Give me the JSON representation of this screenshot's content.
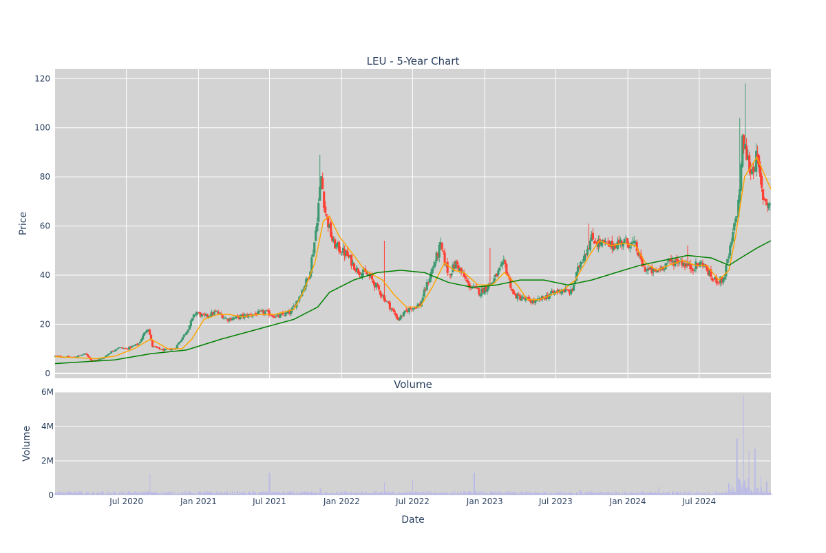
{
  "chart_data": [
    {
      "type": "candlestick",
      "title": "LEU - 5-Year Chart",
      "ylabel": "Price",
      "ylim": [
        -2,
        124
      ],
      "yticks": [
        0,
        20,
        40,
        60,
        80,
        100,
        120
      ],
      "xrange": [
        "2020-01-01",
        "2024-12-31"
      ],
      "xticks": [
        {
          "date": "2020-07-01",
          "label": "Jul 2020"
        },
        {
          "date": "2021-01-01",
          "label": "Jan 2021"
        },
        {
          "date": "2021-07-01",
          "label": "Jul 2021"
        },
        {
          "date": "2022-01-01",
          "label": "Jan 2022"
        },
        {
          "date": "2022-07-01",
          "label": "Jul 2022"
        },
        {
          "date": "2023-01-01",
          "label": "Jan 2023"
        },
        {
          "date": "2023-07-01",
          "label": "Jul 2023"
        },
        {
          "date": "2024-01-01",
          "label": "Jan 2024"
        },
        {
          "date": "2024-07-01",
          "label": "Jul 2024"
        }
      ],
      "grid": true,
      "colors": {
        "up": "#3d9970",
        "down": "#ff4136",
        "ma_short": "#ffa500",
        "ma_long": "#008000",
        "plot_bg": "#d3d3d3"
      },
      "close_path": [
        [
          "2020-01-01",
          7
        ],
        [
          "2020-02-15",
          6.5
        ],
        [
          "2020-03-20",
          8
        ],
        [
          "2020-04-05",
          5
        ],
        [
          "2020-05-01",
          6
        ],
        [
          "2020-05-20",
          8.5
        ],
        [
          "2020-06-10",
          10.5
        ],
        [
          "2020-07-01",
          10
        ],
        [
          "2020-08-01",
          12
        ],
        [
          "2020-08-25",
          19
        ],
        [
          "2020-09-05",
          11
        ],
        [
          "2020-10-01",
          9.5
        ],
        [
          "2020-11-01",
          10
        ],
        [
          "2020-12-01",
          17
        ],
        [
          "2020-12-25",
          25
        ],
        [
          "2021-01-15",
          23
        ],
        [
          "2021-02-15",
          25
        ],
        [
          "2021-03-15",
          22
        ],
        [
          "2021-04-15",
          23
        ],
        [
          "2021-05-20",
          24
        ],
        [
          "2021-06-20",
          25
        ],
        [
          "2021-07-20",
          23
        ],
        [
          "2021-08-25",
          25
        ],
        [
          "2021-09-20",
          33
        ],
        [
          "2021-10-10",
          40
        ],
        [
          "2021-10-25",
          55
        ],
        [
          "2021-11-10",
          80
        ],
        [
          "2021-11-20",
          66
        ],
        [
          "2021-12-10",
          53
        ],
        [
          "2022-01-15",
          48
        ],
        [
          "2022-02-10",
          42
        ],
        [
          "2022-03-10",
          40
        ],
        [
          "2022-04-01",
          35
        ],
        [
          "2022-05-01",
          28
        ],
        [
          "2022-05-25",
          22
        ],
        [
          "2022-06-20",
          26
        ],
        [
          "2022-07-20",
          28
        ],
        [
          "2022-08-15",
          40
        ],
        [
          "2022-09-10",
          52
        ],
        [
          "2022-10-01",
          40
        ],
        [
          "2022-10-20",
          45
        ],
        [
          "2022-11-20",
          36
        ],
        [
          "2022-12-20",
          33
        ],
        [
          "2023-01-20",
          37
        ],
        [
          "2023-02-20",
          45
        ],
        [
          "2023-03-15",
          32
        ],
        [
          "2023-04-15",
          30
        ],
        [
          "2023-05-10",
          29
        ],
        [
          "2023-06-15",
          32
        ],
        [
          "2023-07-15",
          34
        ],
        [
          "2023-08-10",
          33
        ],
        [
          "2023-09-01",
          45
        ],
        [
          "2023-10-01",
          55
        ],
        [
          "2023-10-20",
          53
        ],
        [
          "2023-11-20",
          52
        ],
        [
          "2023-12-20",
          54
        ],
        [
          "2024-01-20",
          52
        ],
        [
          "2024-02-10",
          43
        ],
        [
          "2024-03-10",
          41
        ],
        [
          "2024-04-10",
          45
        ],
        [
          "2024-05-10",
          46
        ],
        [
          "2024-06-10",
          43
        ],
        [
          "2024-07-10",
          45
        ],
        [
          "2024-08-05",
          38
        ],
        [
          "2024-09-01",
          38
        ],
        [
          "2024-09-20",
          52
        ],
        [
          "2024-10-10",
          70
        ],
        [
          "2024-10-20",
          95
        ],
        [
          "2024-11-10",
          82
        ],
        [
          "2024-11-25",
          88
        ],
        [
          "2024-12-10",
          72
        ],
        [
          "2024-12-31",
          68
        ]
      ],
      "spikes": [
        [
          "2021-11-08",
          89
        ],
        [
          "2024-10-25",
          118
        ],
        [
          "2024-10-12",
          104
        ],
        [
          "2022-04-20",
          54
        ],
        [
          "2022-09-12",
          55
        ],
        [
          "2023-01-15",
          51
        ],
        [
          "2023-09-25",
          61
        ],
        [
          "2024-06-01",
          52
        ],
        [
          "2024-08-06",
          34
        ]
      ],
      "ma_short_path": [
        [
          "2020-01-01",
          6.8
        ],
        [
          "2020-04-15",
          6
        ],
        [
          "2020-06-01",
          7
        ],
        [
          "2020-07-20",
          10
        ],
        [
          "2020-09-01",
          14
        ],
        [
          "2020-10-15",
          10
        ],
        [
          "2020-11-20",
          10
        ],
        [
          "2020-12-15",
          14
        ],
        [
          "2021-01-15",
          22
        ],
        [
          "2021-02-20",
          24
        ],
        [
          "2021-03-20",
          24
        ],
        [
          "2021-04-20",
          23
        ],
        [
          "2021-06-01",
          24
        ],
        [
          "2021-07-15",
          24
        ],
        [
          "2021-09-01",
          26
        ],
        [
          "2021-09-25",
          33
        ],
        [
          "2021-10-25",
          45
        ],
        [
          "2021-11-15",
          62
        ],
        [
          "2021-12-01",
          64
        ],
        [
          "2021-12-25",
          56
        ],
        [
          "2022-02-01",
          48
        ],
        [
          "2022-03-01",
          42
        ],
        [
          "2022-04-15",
          38
        ],
        [
          "2022-05-15",
          32
        ],
        [
          "2022-06-15",
          27
        ],
        [
          "2022-07-20",
          27
        ],
        [
          "2022-08-20",
          35
        ],
        [
          "2022-09-20",
          45
        ],
        [
          "2022-10-15",
          42
        ],
        [
          "2022-11-10",
          41
        ],
        [
          "2022-12-15",
          36
        ],
        [
          "2023-01-20",
          36
        ],
        [
          "2023-02-20",
          41
        ],
        [
          "2023-03-25",
          36
        ],
        [
          "2023-04-20",
          30
        ],
        [
          "2023-05-20",
          30
        ],
        [
          "2023-06-20",
          32
        ],
        [
          "2023-07-20",
          34
        ],
        [
          "2023-08-20",
          38
        ],
        [
          "2023-09-25",
          48
        ],
        [
          "2023-10-20",
          54
        ],
        [
          "2023-11-20",
          52
        ],
        [
          "2023-12-20",
          53
        ],
        [
          "2024-01-20",
          52
        ],
        [
          "2024-02-15",
          45
        ],
        [
          "2024-03-15",
          42
        ],
        [
          "2024-04-15",
          44
        ],
        [
          "2024-05-20",
          46
        ],
        [
          "2024-06-20",
          44
        ],
        [
          "2024-07-20",
          44
        ],
        [
          "2024-08-20",
          38
        ],
        [
          "2024-09-15",
          42
        ],
        [
          "2024-10-01",
          55
        ],
        [
          "2024-10-25",
          80
        ],
        [
          "2024-11-25",
          88
        ],
        [
          "2024-12-31",
          75
        ]
      ],
      "ma_long_path": [
        [
          "2020-01-01",
          4
        ],
        [
          "2020-06-01",
          5.5
        ],
        [
          "2020-09-01",
          8
        ],
        [
          "2020-12-01",
          9.5
        ],
        [
          "2021-03-01",
          14
        ],
        [
          "2021-06-01",
          18
        ],
        [
          "2021-09-01",
          22
        ],
        [
          "2021-11-01",
          27
        ],
        [
          "2021-12-01",
          33
        ],
        [
          "2022-02-01",
          38
        ],
        [
          "2022-04-01",
          41
        ],
        [
          "2022-06-01",
          42
        ],
        [
          "2022-08-01",
          41
        ],
        [
          "2022-10-01",
          37
        ],
        [
          "2022-12-01",
          35
        ],
        [
          "2023-02-01",
          36
        ],
        [
          "2023-04-01",
          38
        ],
        [
          "2023-06-01",
          38
        ],
        [
          "2023-08-01",
          36
        ],
        [
          "2023-10-01",
          38
        ],
        [
          "2023-12-01",
          41
        ],
        [
          "2024-02-01",
          44
        ],
        [
          "2024-04-01",
          46
        ],
        [
          "2024-06-01",
          48
        ],
        [
          "2024-08-01",
          47
        ],
        [
          "2024-09-15",
          44
        ],
        [
          "2024-10-15",
          47
        ],
        [
          "2024-11-25",
          51
        ],
        [
          "2024-12-31",
          54
        ]
      ]
    },
    {
      "type": "bar",
      "title": "Volume",
      "xlabel": "Date",
      "ylabel": "Volume",
      "ylim": [
        0,
        6000000
      ],
      "yticks": [
        {
          "value": 0,
          "label": "0"
        },
        {
          "value": 2000000,
          "label": "2M"
        },
        {
          "value": 4000000,
          "label": "4M"
        },
        {
          "value": 6000000,
          "label": "6M"
        }
      ],
      "bar_color": "#b8b8e8",
      "baseline": 150000,
      "spikes": [
        [
          "2020-08-30",
          1250000
        ],
        [
          "2021-07-01",
          1300000
        ],
        [
          "2021-11-08",
          400000
        ],
        [
          "2022-04-20",
          750000
        ],
        [
          "2022-07-01",
          900000
        ],
        [
          "2022-12-05",
          1300000
        ],
        [
          "2023-09-01",
          300000
        ],
        [
          "2024-03-20",
          500000
        ],
        [
          "2024-09-15",
          700000
        ],
        [
          "2024-10-05",
          3300000
        ],
        [
          "2024-10-22",
          5800000
        ],
        [
          "2024-11-05",
          2600000
        ],
        [
          "2024-11-20",
          2700000
        ],
        [
          "2024-12-05",
          1100000
        ],
        [
          "2024-12-20",
          800000
        ]
      ]
    }
  ]
}
